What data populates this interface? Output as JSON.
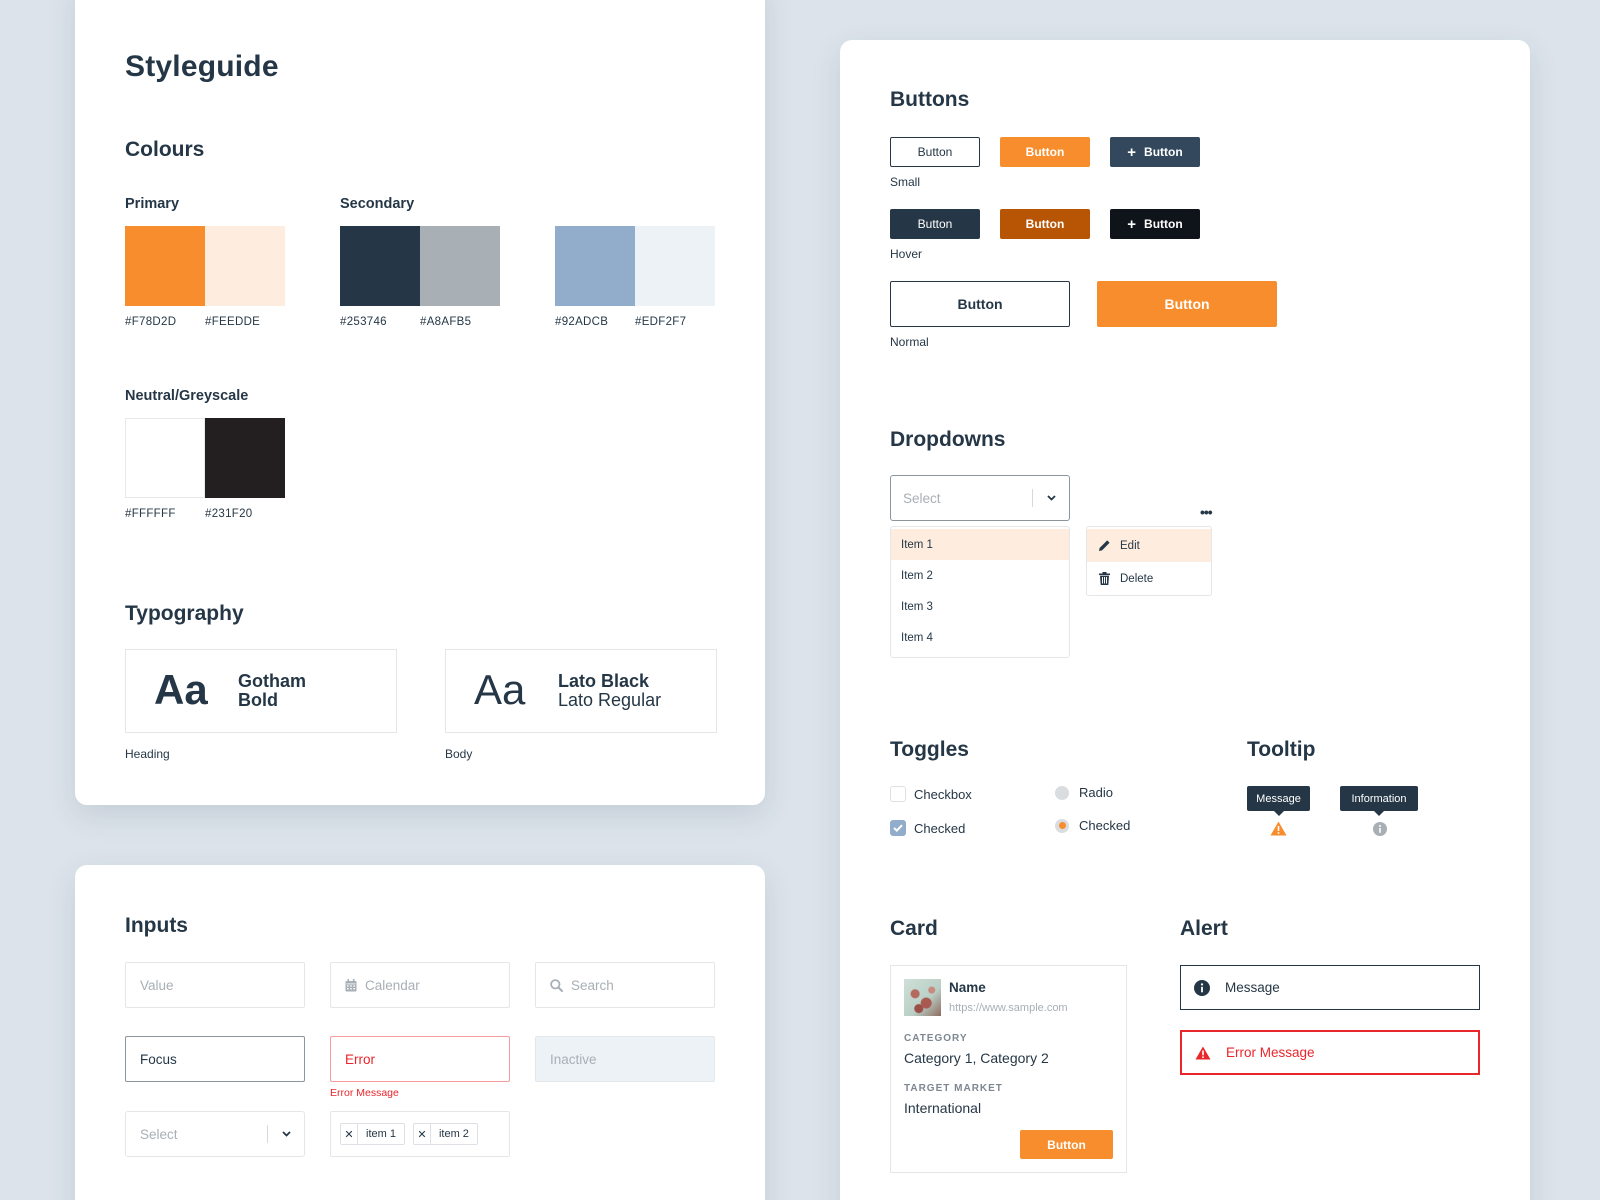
{
  "styleguide": {
    "title": "Styleguide",
    "colours": {
      "heading": "Colours",
      "primary": {
        "label": "Primary",
        "swatches": [
          {
            "hex": "#F78D2D",
            "label": "#F78D2D"
          },
          {
            "hex": "#FEEDDE",
            "label": "#FEEDDE"
          }
        ]
      },
      "secondary": {
        "label": "Secondary",
        "swatches": [
          {
            "hex": "#253746",
            "label": "#253746"
          },
          {
            "hex": "#A8AFB5",
            "label": "#A8AFB5"
          },
          {
            "hex": "#92ADCB",
            "label": "#92ADCB"
          },
          {
            "hex": "#EDF2F7",
            "label": "#EDF2F7"
          }
        ]
      },
      "neutral": {
        "label": "Neutral/Greyscale",
        "swatches": [
          {
            "hex": "#FFFFFF",
            "label": "#FFFFFF"
          },
          {
            "hex": "#231F20",
            "label": "#231F20"
          }
        ]
      }
    },
    "typography": {
      "heading": "Typography",
      "heading_font": {
        "sample": "Aa",
        "line1": "Gotham",
        "line2": "Bold",
        "caption": "Heading"
      },
      "body_font": {
        "sample": "Aa",
        "line1": "Lato Black",
        "line2": "Lato Regular",
        "caption": "Body"
      }
    }
  },
  "inputs": {
    "heading": "Inputs",
    "value_placeholder": "Value",
    "calendar_placeholder": "Calendar",
    "search_placeholder": "Search",
    "focus_value": "Focus",
    "error_value": "Error",
    "error_message": "Error Message",
    "inactive_value": "Inactive",
    "select_placeholder": "Select",
    "tags": [
      "item 1",
      "item 2"
    ]
  },
  "buttons": {
    "heading": "Buttons",
    "small_caption": "Small",
    "hover_caption": "Hover",
    "normal_caption": "Normal",
    "label": "Button"
  },
  "dropdowns": {
    "heading": "Dropdowns",
    "select_placeholder": "Select",
    "items": [
      "Item 1",
      "Item 2",
      "Item 3",
      "Item 4"
    ],
    "selected_index": 0,
    "actions": [
      {
        "label": "Edit",
        "icon": "pencil-icon"
      },
      {
        "label": "Delete",
        "icon": "trash-icon"
      }
    ]
  },
  "toggles": {
    "heading": "Toggles",
    "checkbox_unchecked": "Checkbox",
    "checkbox_checked": "Checked",
    "radio_unchecked": "Radio",
    "radio_checked": "Checked"
  },
  "tooltip": {
    "heading": "Tooltip",
    "message": "Message",
    "information": "Information"
  },
  "card": {
    "heading": "Card",
    "name": "Name",
    "url": "https://www.sample.com",
    "category_label": "CATEGORY",
    "category_value": "Category 1, Category 2",
    "market_label": "TARGET MARKET",
    "market_value": "International",
    "button": "Button"
  },
  "alert": {
    "heading": "Alert",
    "info_message": "Message",
    "error_message": "Error Message"
  },
  "colors": {
    "background": "#DCE3EB",
    "accent": "#F78D2D",
    "accent_hover": "#B85505",
    "dark": "#253746",
    "error": "#E8262C"
  }
}
